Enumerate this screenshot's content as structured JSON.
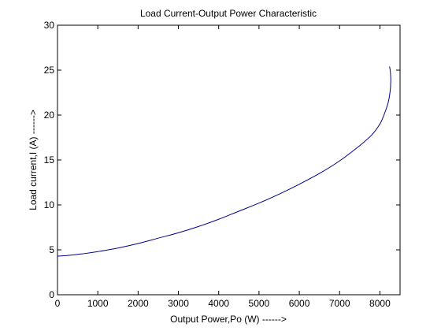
{
  "chart_data": {
    "type": "line",
    "title": "Load Current-Output Power Characteristic",
    "xlabel": "Output Power,Po (W) ------>",
    "ylabel": "Load current,I (A) ------>",
    "xlim": [
      0,
      8500
    ],
    "ylim": [
      0,
      30
    ],
    "xticks": [
      0,
      1000,
      2000,
      3000,
      4000,
      5000,
      6000,
      7000,
      8000
    ],
    "yticks": [
      0,
      5,
      10,
      15,
      20,
      25,
      30
    ],
    "grid": true,
    "series": [
      {
        "color": "#00008b",
        "x": [
          0,
          200,
          500,
          700,
          1000,
          1500,
          2000,
          2500,
          3000,
          3500,
          4000,
          4500,
          5000,
          5500,
          6000,
          6500,
          7000,
          7500,
          7800,
          8000,
          8100,
          8200,
          8250,
          8270,
          8260,
          8240
        ],
        "y": [
          4.3,
          4.35,
          4.5,
          4.6,
          4.8,
          5.2,
          5.7,
          6.3,
          6.9,
          7.6,
          8.4,
          9.3,
          10.2,
          11.2,
          12.3,
          13.5,
          14.9,
          16.6,
          17.8,
          19.0,
          20.0,
          21.3,
          22.5,
          23.8,
          24.8,
          25.4
        ]
      }
    ]
  }
}
